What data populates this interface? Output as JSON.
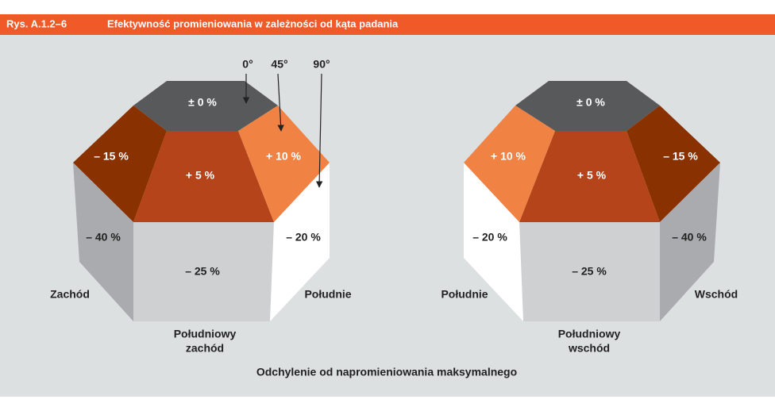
{
  "header": {
    "figure": "Rys. A.1.2–6",
    "title": "Efektywność promieniowania w zależności od kąta padania"
  },
  "angles": [
    "0°",
    "45°",
    "90°"
  ],
  "left": {
    "faces": {
      "top": "± 0 %",
      "upper_left": "– 15 %",
      "upper_center": "+ 5 %",
      "upper_right": "+ 10 %",
      "lower_left": "– 40 %",
      "lower_center": "– 25 %",
      "lower_right": "– 20 %"
    },
    "directions": {
      "left": "Zachód",
      "right": "Południe",
      "bottom": [
        "Południowy",
        "zachód"
      ]
    }
  },
  "right": {
    "faces": {
      "top": "± 0 %",
      "upper_left": "+ 10 %",
      "upper_center": "+ 5 %",
      "upper_right": "– 15 %",
      "lower_left": "– 20 %",
      "lower_center": "– 25 %",
      "lower_right": "– 40 %"
    },
    "directions": {
      "left": "Południe",
      "right": "Wschód",
      "bottom": [
        "Południowy",
        "wschód"
      ]
    }
  },
  "caption": "Odchylenie od napromieniowania maksymalnego"
}
